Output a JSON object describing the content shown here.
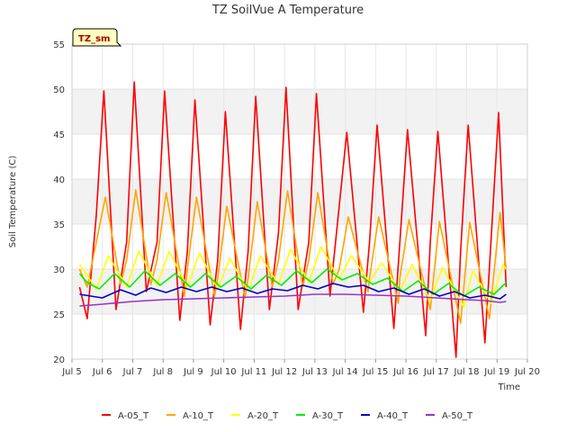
{
  "chart_data": {
    "type": "line",
    "title": "TZ SoilVue A Temperature",
    "site_label": "TZ_sm",
    "xlabel": "Time",
    "ylabel": "Soil Temperature (C)",
    "xlim": [
      5,
      20
    ],
    "ylim": [
      20,
      55
    ],
    "x_ticks": [
      {
        "value": 5,
        "label": "Jul 5"
      },
      {
        "value": 6,
        "label": "Jul 6"
      },
      {
        "value": 7,
        "label": "Jul 7"
      },
      {
        "value": 8,
        "label": "Jul 8"
      },
      {
        "value": 9,
        "label": "Jul 9"
      },
      {
        "value": 10,
        "label": "Jul 10"
      },
      {
        "value": 11,
        "label": "Jul 11"
      },
      {
        "value": 12,
        "label": "Jul 12"
      },
      {
        "value": 13,
        "label": "Jul 13"
      },
      {
        "value": 14,
        "label": "Jul 14"
      },
      {
        "value": 15,
        "label": "Jul 15"
      },
      {
        "value": 16,
        "label": "Jul 16"
      },
      {
        "value": 17,
        "label": "Jul 17"
      },
      {
        "value": 18,
        "label": "Jul 18"
      },
      {
        "value": 19,
        "label": "Jul 19"
      },
      {
        "value": 20,
        "label": "Jul 20"
      }
    ],
    "y_ticks": [
      20,
      25,
      30,
      35,
      40,
      45,
      50,
      55
    ],
    "series": [
      {
        "name": "A-05_T",
        "color": "#ff0000",
        "x": [
          5.25,
          5.5,
          5.8,
          6.05,
          6.45,
          6.8,
          7.05,
          7.45,
          7.8,
          8.05,
          8.55,
          8.8,
          9.05,
          9.55,
          9.8,
          10.05,
          10.55,
          10.8,
          11.05,
          11.5,
          11.8,
          12.05,
          12.45,
          12.8,
          13.05,
          13.5,
          13.8,
          14.05,
          14.6,
          14.8,
          15.05,
          15.6,
          15.8,
          16.05,
          16.65,
          16.8,
          17.05,
          17.65,
          17.8,
          18.05,
          18.6,
          18.8,
          19.05,
          19.3
        ],
        "values": [
          28,
          24.5,
          36,
          49.8,
          25.5,
          33,
          50.8,
          27.5,
          33,
          49.8,
          24.3,
          32,
          48.8,
          23.8,
          31,
          47.5,
          23.3,
          32,
          49.2,
          25.5,
          34,
          50.2,
          25.5,
          33,
          49.5,
          27,
          37,
          45.2,
          25.2,
          33,
          46,
          23.4,
          33,
          45.5,
          22.6,
          33,
          45.3,
          20.2,
          32,
          46,
          21.8,
          33,
          47.4,
          28
        ]
      },
      {
        "name": "A-10_T",
        "color": "#ffa500",
        "x": [
          5.25,
          5.5,
          5.8,
          6.1,
          6.6,
          6.8,
          7.1,
          7.6,
          7.8,
          8.1,
          8.7,
          8.8,
          9.1,
          9.7,
          9.8,
          10.1,
          10.7,
          10.8,
          11.1,
          11.6,
          11.8,
          12.1,
          12.6,
          12.8,
          13.1,
          13.6,
          13.8,
          14.1,
          14.75,
          14.8,
          15.1,
          15.75,
          15.8,
          16.1,
          16.8,
          17.1,
          17.8,
          18.1,
          18.75,
          19.1,
          19.3
        ],
        "values": [
          30,
          28,
          33,
          38,
          28.3,
          31,
          38.8,
          28.3,
          31,
          38.5,
          27,
          30,
          38,
          27,
          29,
          37,
          26.8,
          29,
          37.5,
          28,
          31,
          38.7,
          28,
          31,
          38.5,
          28.3,
          30,
          35.8,
          27.5,
          29,
          35.8,
          26.2,
          29,
          35.5,
          25.5,
          35.3,
          24,
          35.2,
          24.5,
          36.3,
          30
        ]
      },
      {
        "name": "A-20_T",
        "color": "#ffff00",
        "x": [
          5.25,
          5.8,
          6.2,
          6.8,
          7.2,
          7.8,
          8.2,
          8.8,
          9.2,
          9.8,
          10.2,
          10.8,
          11.2,
          11.8,
          12.2,
          12.8,
          13.2,
          13.8,
          14.2,
          14.8,
          15.2,
          15.8,
          16.2,
          16.8,
          17.2,
          17.9,
          18.2,
          18.8,
          19.2,
          19.3
        ],
        "values": [
          30.5,
          27.8,
          31.5,
          28,
          32,
          28.2,
          32,
          28,
          31.8,
          27.8,
          31.2,
          27.5,
          31.5,
          28.3,
          32.2,
          28.5,
          32.5,
          28.8,
          31.5,
          28.5,
          30.7,
          27.5,
          30.5,
          26.5,
          30.2,
          25.8,
          29.8,
          26.2,
          30.5,
          30
        ]
      },
      {
        "name": "A-30_T",
        "color": "#00ee00",
        "x": [
          5.25,
          5.5,
          5.9,
          6.4,
          6.9,
          7.4,
          7.9,
          8.4,
          8.9,
          9.4,
          9.9,
          10.4,
          10.9,
          11.4,
          11.9,
          12.4,
          12.9,
          13.4,
          13.9,
          14.4,
          14.9,
          15.4,
          15.9,
          16.4,
          16.9,
          17.4,
          17.9,
          18.4,
          18.9,
          19.3
        ],
        "values": [
          29.5,
          28.5,
          27.8,
          29.5,
          28,
          29.8,
          28.2,
          29.5,
          28,
          29.5,
          28,
          29.2,
          27.8,
          29.3,
          28.2,
          29.8,
          28.5,
          30,
          28.8,
          29.5,
          28.3,
          29,
          27.5,
          28.7,
          27.2,
          28.4,
          27,
          28,
          27.2,
          28.5
        ]
      },
      {
        "name": "A-40_T",
        "color": "#0000cc",
        "x": [
          5.25,
          6,
          6.6,
          7.1,
          7.6,
          8.1,
          8.6,
          9.1,
          9.6,
          10.1,
          10.6,
          11.1,
          11.6,
          12.1,
          12.6,
          13.1,
          13.6,
          14.1,
          14.6,
          15.1,
          15.6,
          16.1,
          16.6,
          17.1,
          17.6,
          18.1,
          18.6,
          19.1,
          19.3
        ],
        "values": [
          27.2,
          26.8,
          27.7,
          27.1,
          27.9,
          27.4,
          28,
          27.5,
          28,
          27.5,
          27.9,
          27.3,
          27.8,
          27.6,
          28.2,
          27.8,
          28.4,
          28,
          28.2,
          27.5,
          27.9,
          27.2,
          27.8,
          27,
          27.5,
          26.8,
          27.1,
          26.7,
          27.2
        ]
      },
      {
        "name": "A-50_T",
        "color": "#9932cc",
        "x": [
          5.25,
          6,
          7,
          8,
          9,
          10,
          11,
          12,
          13,
          14,
          15,
          16,
          17,
          18,
          18.6,
          19.1,
          19.3
        ],
        "values": [
          25.9,
          26.1,
          26.4,
          26.6,
          26.7,
          26.8,
          26.9,
          27,
          27.2,
          27.2,
          27.1,
          27,
          26.8,
          26.6,
          26.5,
          26.3,
          26.4
        ]
      }
    ]
  }
}
